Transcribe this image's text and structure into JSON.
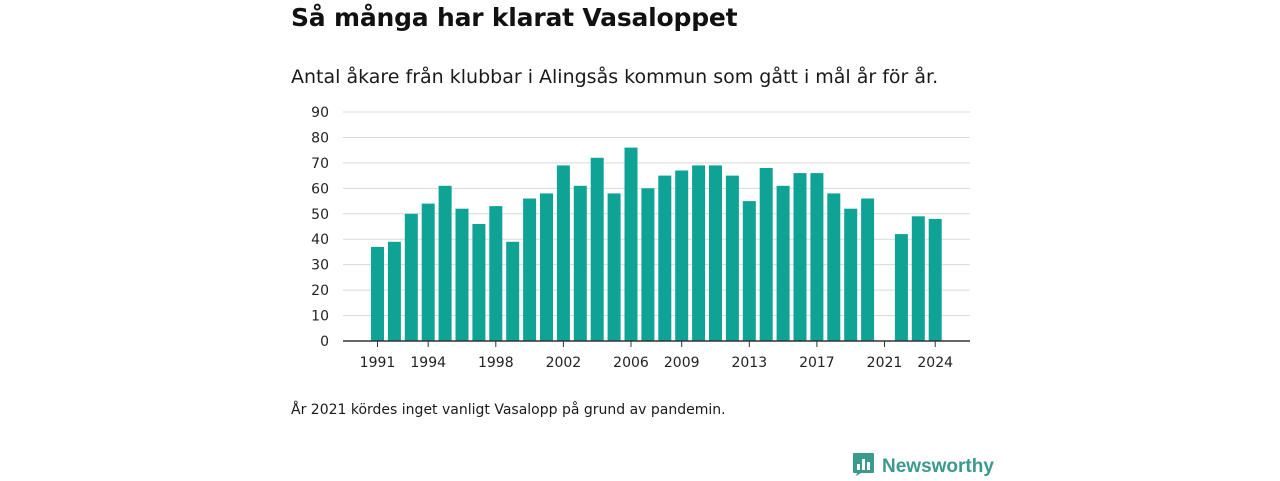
{
  "title": "Så många har klarat Vasaloppet",
  "subtitle": "Antal åkare från klubbar i Alingsås kommun som gått i mål år för år.",
  "footnote": "År 2021 kördes inget vanligt Vasalopp på grund av pandemin.",
  "brand": {
    "name": "Newsworthy",
    "icon": "newsworthy-logo-icon",
    "color": "#3a9a8c"
  },
  "chart_data": {
    "type": "bar",
    "bar_color": "#0fa396",
    "x": [
      1991,
      1992,
      1993,
      1994,
      1995,
      1996,
      1997,
      1998,
      1999,
      2000,
      2001,
      2002,
      2003,
      2004,
      2005,
      2006,
      2007,
      2008,
      2009,
      2010,
      2011,
      2012,
      2013,
      2014,
      2015,
      2016,
      2017,
      2018,
      2019,
      2020,
      2021,
      2022,
      2023,
      2024
    ],
    "values": [
      37,
      39,
      50,
      54,
      61,
      52,
      46,
      53,
      39,
      56,
      58,
      69,
      61,
      72,
      58,
      76,
      60,
      65,
      67,
      69,
      69,
      65,
      55,
      68,
      61,
      66,
      66,
      58,
      52,
      56,
      null,
      42,
      49,
      48
    ],
    "x_tick_labels": [
      "1991",
      "1994",
      "1998",
      "2002",
      "2006",
      "2009",
      "2013",
      "2017",
      "2021",
      "2024"
    ],
    "y_ticks": [
      0,
      10,
      20,
      30,
      40,
      50,
      60,
      70,
      80,
      90
    ],
    "ylim": [
      0,
      90
    ],
    "grid": true
  }
}
